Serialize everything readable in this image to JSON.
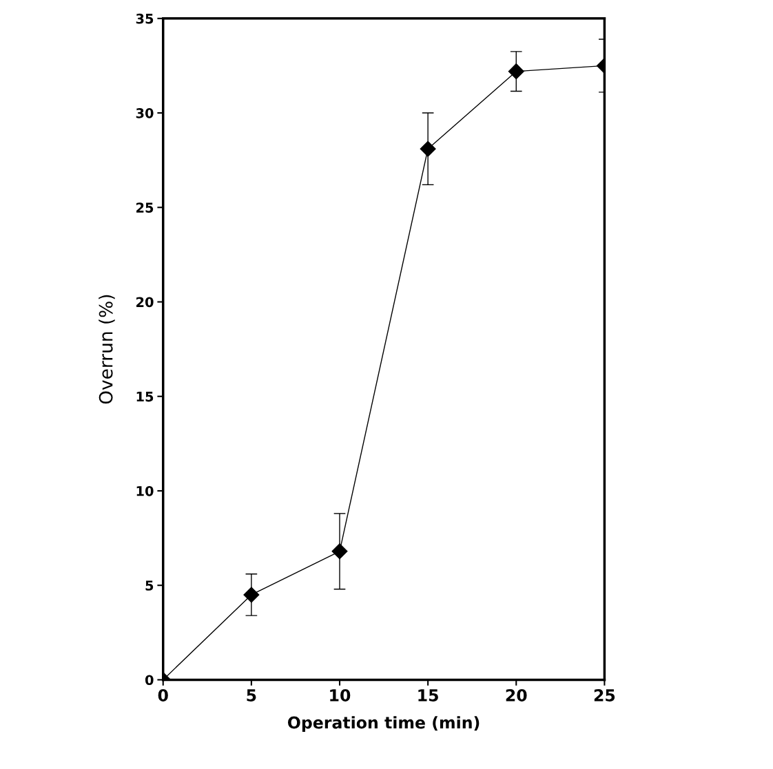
{
  "chart_data": {
    "type": "line",
    "xlabel": "Operation time (min)",
    "ylabel": "Overrun (%)",
    "x": [
      0,
      5,
      10,
      15,
      20,
      25
    ],
    "series": [
      {
        "color": "#000000",
        "values": [
          0,
          4.5,
          6.8,
          28.1,
          32.2,
          32.5
        ],
        "errors": [
          null,
          1.1,
          2.0,
          1.9,
          1.05,
          1.4
        ]
      }
    ],
    "xlim": [
      0,
      25
    ],
    "xticks": [
      0,
      5,
      10,
      15,
      20,
      25
    ],
    "ylim": [
      0,
      35
    ],
    "yticks": [
      0,
      5,
      10,
      15,
      20,
      25,
      30,
      35
    ],
    "marker": "diamond",
    "line_style": "solid",
    "grid": false,
    "legend": false
  }
}
